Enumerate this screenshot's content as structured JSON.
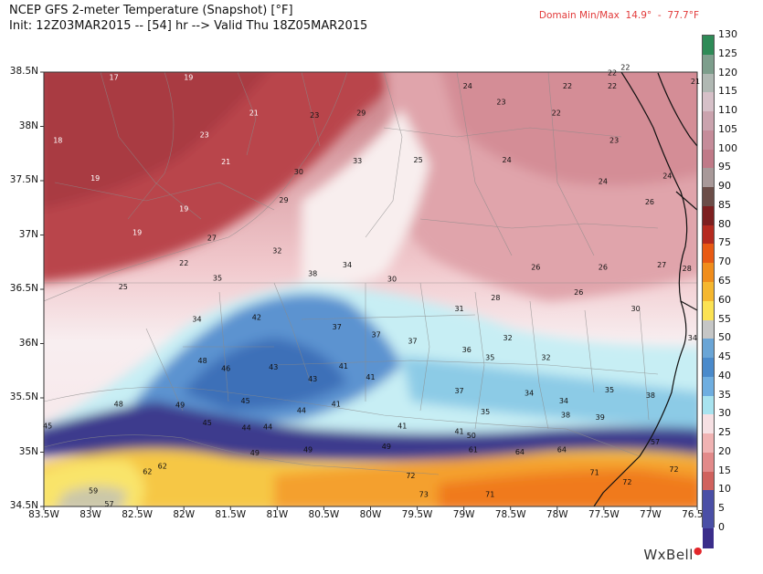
{
  "header": {
    "title": "NCEP GFS 2-meter Temperature (Snapshot) [°F]",
    "subtitle": "Init: 12Z03MAR2015 -- [54] hr --> Valid Thu 18Z05MAR2015",
    "domain_minmax": "Domain Min/Max  14.9°  -  77.7°F"
  },
  "brand": {
    "name": "WxBell"
  },
  "axes": {
    "lat_labels": [
      "38.5N",
      "38N",
      "37.5N",
      "37N",
      "36.5N",
      "36N",
      "35.5N",
      "35N",
      "34.5N"
    ],
    "lon_labels": [
      "83.5W",
      "83W",
      "82.5W",
      "82W",
      "81.5W",
      "81W",
      "80.5W",
      "80W",
      "79.5W",
      "79W",
      "78.5W",
      "78W",
      "77.5W",
      "77W",
      "76.5W"
    ]
  },
  "colorbar": {
    "labels": [
      "130",
      "125",
      "120",
      "115",
      "110",
      "105",
      "100",
      "95",
      "90",
      "85",
      "80",
      "75",
      "70",
      "65",
      "60",
      "55",
      "50",
      "45",
      "40",
      "35",
      "30",
      "25",
      "20",
      "15",
      "10",
      "5",
      "0"
    ],
    "colors": [
      "#2e8b57",
      "#7d9e8c",
      "#b0b8b3",
      "#d6c0c8",
      "#caa3ae",
      "#c58c9a",
      "#c07a88",
      "#a89999",
      "#6b4d48",
      "#7d1f1f",
      "#b52a1f",
      "#e85a14",
      "#f08d1c",
      "#f5b72f",
      "#fbe253",
      "#c5c6c6",
      "#6aa5d6",
      "#4a8acb",
      "#6faee0",
      "#a8e3ef",
      "#f6e0e3",
      "#f0b3b3",
      "#e28a8a",
      "#d0625e",
      "#4a4fa6",
      "#4a4fa6",
      "#3a2d8a"
    ]
  },
  "map": {
    "values": [
      {
        "t": "17",
        "c": "w",
        "lon": -82.75,
        "lat": 38.43
      },
      {
        "t": "19",
        "c": "w",
        "lon": -81.95,
        "lat": 38.43
      },
      {
        "t": "18",
        "c": "w",
        "lon": -83.35,
        "lat": 37.85
      },
      {
        "t": "19",
        "c": "w",
        "lon": -82.95,
        "lat": 37.5
      },
      {
        "t": "19",
        "c": "w",
        "lon": -82.5,
        "lat": 37.0
      },
      {
        "t": "23",
        "c": "w",
        "lon": -81.78,
        "lat": 37.9
      },
      {
        "t": "21",
        "c": "w",
        "lon": -81.25,
        "lat": 38.1
      },
      {
        "t": "21",
        "c": "w",
        "lon": -81.55,
        "lat": 37.65
      },
      {
        "t": "19",
        "c": "w",
        "lon": -82.0,
        "lat": 37.22
      },
      {
        "t": "22",
        "c": "k",
        "lon": -82.0,
        "lat": 36.72
      },
      {
        "t": "25",
        "c": "k",
        "lon": -82.65,
        "lat": 36.5
      },
      {
        "t": "27",
        "c": "k",
        "lon": -81.7,
        "lat": 36.95
      },
      {
        "t": "23",
        "c": "k",
        "lon": -80.6,
        "lat": 38.08
      },
      {
        "t": "29",
        "c": "k",
        "lon": -80.1,
        "lat": 38.1
      },
      {
        "t": "33",
        "c": "k",
        "lon": -80.14,
        "lat": 37.66
      },
      {
        "t": "30",
        "c": "k",
        "lon": -80.77,
        "lat": 37.56
      },
      {
        "t": "29",
        "c": "k",
        "lon": -80.93,
        "lat": 37.3
      },
      {
        "t": "32",
        "c": "k",
        "lon": -81.0,
        "lat": 36.83
      },
      {
        "t": "34",
        "c": "k",
        "lon": -80.25,
        "lat": 36.7
      },
      {
        "t": "30",
        "c": "k",
        "lon": -79.77,
        "lat": 36.57
      },
      {
        "t": "25",
        "c": "k",
        "lon": -79.49,
        "lat": 37.67
      },
      {
        "t": "24",
        "c": "k",
        "lon": -78.96,
        "lat": 38.35
      },
      {
        "t": "23",
        "c": "k",
        "lon": -78.6,
        "lat": 38.2
      },
      {
        "t": "22",
        "c": "k",
        "lon": -78.01,
        "lat": 38.1
      },
      {
        "t": "22",
        "c": "k",
        "lon": -77.89,
        "lat": 38.35
      },
      {
        "t": "22",
        "c": "k",
        "lon": -77.41,
        "lat": 38.35
      },
      {
        "t": "22",
        "c": "k",
        "lon": -77.41,
        "lat": 38.47
      },
      {
        "t": "22",
        "c": "k",
        "lon": -77.27,
        "lat": 38.52
      },
      {
        "t": "21",
        "c": "k",
        "lon": -76.52,
        "lat": 38.39
      },
      {
        "t": "23",
        "c": "k",
        "lon": -77.39,
        "lat": 37.85
      },
      {
        "t": "24",
        "c": "k",
        "lon": -78.54,
        "lat": 37.67
      },
      {
        "t": "24",
        "c": "k",
        "lon": -77.51,
        "lat": 37.47
      },
      {
        "t": "24",
        "c": "k",
        "lon": -76.82,
        "lat": 37.52
      },
      {
        "t": "26",
        "c": "k",
        "lon": -77.01,
        "lat": 37.28
      },
      {
        "t": "26",
        "c": "k",
        "lon": -78.23,
        "lat": 36.68
      },
      {
        "t": "26",
        "c": "k",
        "lon": -77.51,
        "lat": 36.68
      },
      {
        "t": "27",
        "c": "k",
        "lon": -76.88,
        "lat": 36.7
      },
      {
        "t": "28",
        "c": "k",
        "lon": -76.61,
        "lat": 36.67
      },
      {
        "t": "26",
        "c": "k",
        "lon": -77.77,
        "lat": 36.45
      },
      {
        "t": "28",
        "c": "k",
        "lon": -78.66,
        "lat": 36.4
      },
      {
        "t": "30",
        "c": "k",
        "lon": -77.16,
        "lat": 36.3
      },
      {
        "t": "31",
        "c": "k",
        "lon": -79.05,
        "lat": 36.3
      },
      {
        "t": "32",
        "c": "k",
        "lon": -78.53,
        "lat": 36.03
      },
      {
        "t": "32",
        "c": "k",
        "lon": -78.12,
        "lat": 35.85
      },
      {
        "t": "34",
        "c": "k",
        "lon": -76.55,
        "lat": 36.03
      },
      {
        "t": "35",
        "c": "k",
        "lon": -77.44,
        "lat": 35.55
      },
      {
        "t": "38",
        "c": "k",
        "lon": -77.0,
        "lat": 35.5
      },
      {
        "t": "35",
        "c": "k",
        "lon": -81.64,
        "lat": 36.58
      },
      {
        "t": "38",
        "c": "k",
        "lon": -80.62,
        "lat": 36.62
      },
      {
        "t": "34",
        "c": "k",
        "lon": -81.86,
        "lat": 36.2
      },
      {
        "t": "42",
        "c": "k",
        "lon": -81.22,
        "lat": 36.22
      },
      {
        "t": "37",
        "c": "k",
        "lon": -80.36,
        "lat": 36.13
      },
      {
        "t": "37",
        "c": "k",
        "lon": -79.94,
        "lat": 36.06
      },
      {
        "t": "37",
        "c": "k",
        "lon": -79.55,
        "lat": 36.0
      },
      {
        "t": "36",
        "c": "k",
        "lon": -78.97,
        "lat": 35.92
      },
      {
        "t": "35",
        "c": "k",
        "lon": -78.72,
        "lat": 35.85
      },
      {
        "t": "48",
        "c": "k",
        "lon": -81.8,
        "lat": 35.82
      },
      {
        "t": "46",
        "c": "k",
        "lon": -81.55,
        "lat": 35.75
      },
      {
        "t": "43",
        "c": "k",
        "lon": -81.04,
        "lat": 35.76
      },
      {
        "t": "43",
        "c": "k",
        "lon": -80.62,
        "lat": 35.65
      },
      {
        "t": "41",
        "c": "k",
        "lon": -80.29,
        "lat": 35.77
      },
      {
        "t": "41",
        "c": "k",
        "lon": -80.0,
        "lat": 35.67
      },
      {
        "t": "37",
        "c": "k",
        "lon": -79.05,
        "lat": 35.54
      },
      {
        "t": "34",
        "c": "k",
        "lon": -78.3,
        "lat": 35.52
      },
      {
        "t": "34",
        "c": "k",
        "lon": -77.93,
        "lat": 35.45
      },
      {
        "t": "38",
        "c": "k",
        "lon": -77.91,
        "lat": 35.32
      },
      {
        "t": "39",
        "c": "k",
        "lon": -77.54,
        "lat": 35.3
      },
      {
        "t": "35",
        "c": "k",
        "lon": -78.77,
        "lat": 35.35
      },
      {
        "t": "48",
        "c": "k",
        "lon": -82.7,
        "lat": 35.42
      },
      {
        "t": "49",
        "c": "k",
        "lon": -82.04,
        "lat": 35.41
      },
      {
        "t": "45",
        "c": "k",
        "lon": -81.34,
        "lat": 35.45
      },
      {
        "t": "44",
        "c": "k",
        "lon": -80.74,
        "lat": 35.36
      },
      {
        "t": "41",
        "c": "k",
        "lon": -80.37,
        "lat": 35.42
      },
      {
        "t": "45",
        "c": "k",
        "lon": -83.46,
        "lat": 35.22
      },
      {
        "t": "45",
        "c": "k",
        "lon": -81.75,
        "lat": 35.25
      },
      {
        "t": "44",
        "c": "k",
        "lon": -81.33,
        "lat": 35.2
      },
      {
        "t": "44",
        "c": "k",
        "lon": -81.1,
        "lat": 35.21
      },
      {
        "t": "41",
        "c": "k",
        "lon": -79.66,
        "lat": 35.22
      },
      {
        "t": "41",
        "c": "k",
        "lon": -79.05,
        "lat": 35.17
      },
      {
        "t": "50",
        "c": "k",
        "lon": -78.92,
        "lat": 35.13
      },
      {
        "t": "49",
        "c": "k",
        "lon": -81.24,
        "lat": 34.97
      },
      {
        "t": "49",
        "c": "k",
        "lon": -80.67,
        "lat": 35.0
      },
      {
        "t": "49",
        "c": "k",
        "lon": -79.83,
        "lat": 35.03
      },
      {
        "t": "61",
        "c": "k",
        "lon": -78.9,
        "lat": 35.0
      },
      {
        "t": "64",
        "c": "k",
        "lon": -78.4,
        "lat": 34.98
      },
      {
        "t": "64",
        "c": "k",
        "lon": -77.95,
        "lat": 35.0
      },
      {
        "t": "57",
        "c": "k",
        "lon": -76.95,
        "lat": 35.07
      },
      {
        "t": "62",
        "c": "k",
        "lon": -82.23,
        "lat": 34.85
      },
      {
        "t": "62",
        "c": "k",
        "lon": -82.39,
        "lat": 34.8
      },
      {
        "t": "59",
        "c": "k",
        "lon": -82.97,
        "lat": 34.62
      },
      {
        "t": "57",
        "c": "k",
        "lon": -82.8,
        "lat": 34.5
      },
      {
        "t": "72",
        "c": "k",
        "lon": -79.57,
        "lat": 34.76
      },
      {
        "t": "71",
        "c": "k",
        "lon": -77.6,
        "lat": 34.79
      },
      {
        "t": "72",
        "c": "k",
        "lon": -77.25,
        "lat": 34.7
      },
      {
        "t": "72",
        "c": "k",
        "lon": -76.75,
        "lat": 34.82
      },
      {
        "t": "73",
        "c": "k",
        "lon": -79.43,
        "lat": 34.59
      },
      {
        "t": "71",
        "c": "k",
        "lon": -78.72,
        "lat": 34.59
      }
    ]
  }
}
